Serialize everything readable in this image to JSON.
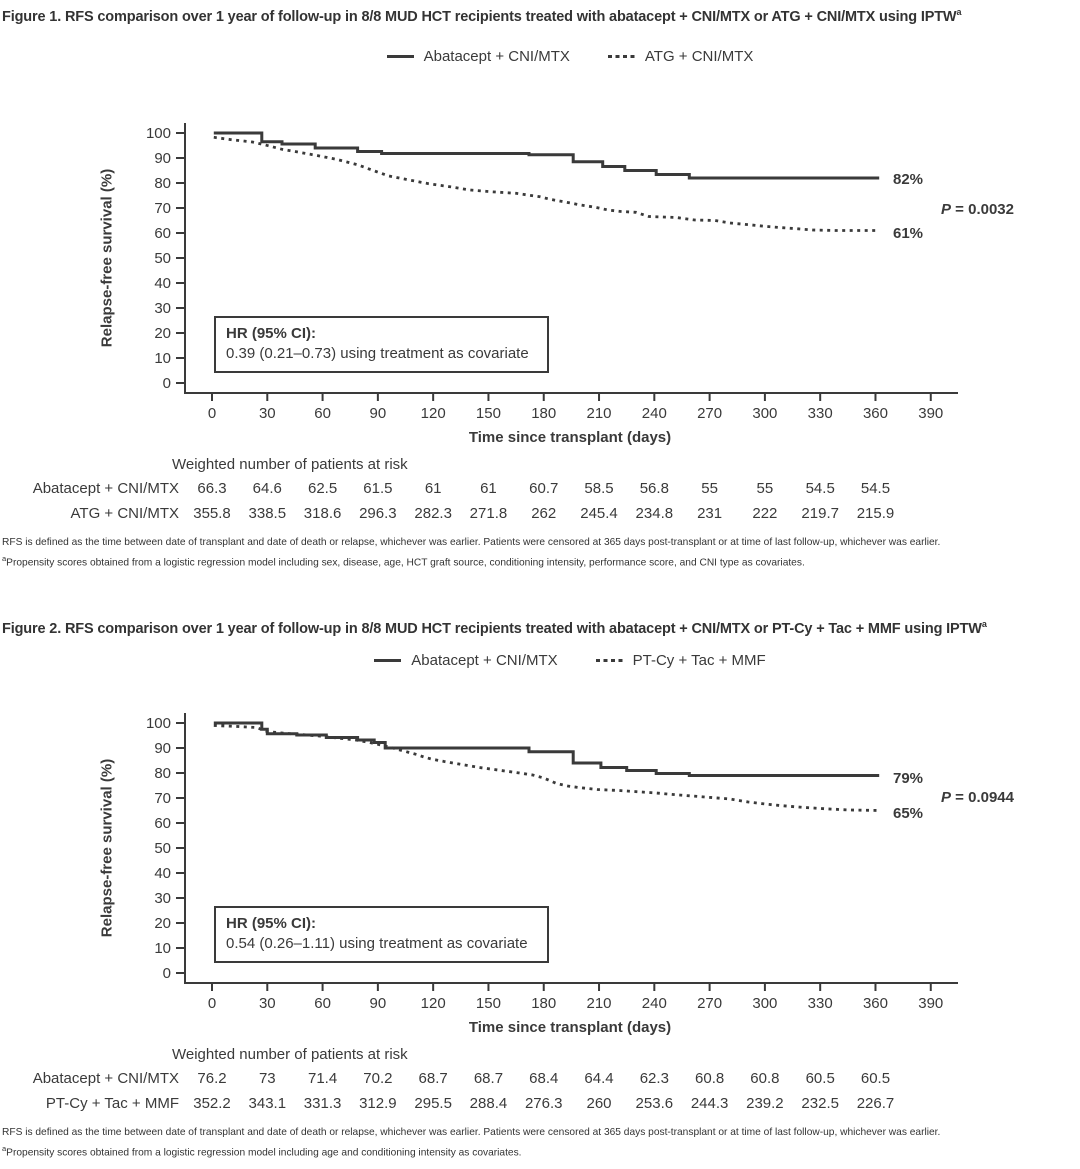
{
  "line_color": "#3a3a3a",
  "chart_data": [
    {
      "id": "figure1",
      "type": "line",
      "title": "Figure 1. RFS comparison over 1 year of follow-up in 8/8 MUD HCT recipients treated with abatacept + CNI/MTX or ATG + CNI/MTX using IPTW",
      "title_sup": "a",
      "xlabel": "Time since transplant (days)",
      "ylabel": "Relapse-free survival (%)",
      "xlim": [
        0,
        390
      ],
      "ylim": [
        0,
        100
      ],
      "xticks": [
        0,
        30,
        60,
        90,
        120,
        150,
        180,
        210,
        240,
        270,
        300,
        330,
        360,
        390
      ],
      "yticks": [
        0,
        10,
        20,
        30,
        40,
        50,
        60,
        70,
        80,
        90,
        100
      ],
      "grid": false,
      "legend_position": "top-center",
      "series": [
        {
          "name": "Abatacept + CNI/MTX",
          "style": "solid",
          "color": "#3a3a3a",
          "end_label": "82%",
          "points": [
            [
              1,
              100
            ],
            [
              27,
              100
            ],
            [
              27,
              96.5
            ],
            [
              38,
              96.5
            ],
            [
              38,
              95.6
            ],
            [
              56,
              95.6
            ],
            [
              56,
              94
            ],
            [
              79,
              94
            ],
            [
              79,
              92.6
            ],
            [
              92,
              92.6
            ],
            [
              92,
              91.8
            ],
            [
              172,
              91.8
            ],
            [
              172,
              91.3
            ],
            [
              196,
              91.3
            ],
            [
              196,
              88.5
            ],
            [
              212,
              88.5
            ],
            [
              212,
              86.6
            ],
            [
              224,
              86.6
            ],
            [
              224,
              85
            ],
            [
              241,
              85
            ],
            [
              241,
              83.4
            ],
            [
              259,
              83.4
            ],
            [
              259,
              82
            ],
            [
              362,
              82
            ]
          ]
        },
        {
          "name": "ATG + CNI/MTX",
          "style": "dotted",
          "color": "#3a3a3a",
          "end_label": "61%",
          "points": [
            [
              1,
              98.3
            ],
            [
              11,
              97.3
            ],
            [
              22,
              96.4
            ],
            [
              29,
              95.2
            ],
            [
              38,
              93.5
            ],
            [
              48,
              92.2
            ],
            [
              57,
              91
            ],
            [
              68,
              89.4
            ],
            [
              79,
              87.3
            ],
            [
              89,
              84.6
            ],
            [
              96,
              82.8
            ],
            [
              107,
              81.2
            ],
            [
              117,
              79.8
            ],
            [
              130,
              78.4
            ],
            [
              140,
              77.2
            ],
            [
              152,
              76.5
            ],
            [
              165,
              75.9
            ],
            [
              178,
              74.5
            ],
            [
              184,
              73.4
            ],
            [
              191,
              72.5
            ],
            [
              200,
              71.2
            ],
            [
              208,
              70.3
            ],
            [
              215,
              69.2
            ],
            [
              222,
              68.6
            ],
            [
              230,
              68.3
            ],
            [
              237,
              66.6
            ],
            [
              252,
              66.2
            ],
            [
              262,
              65.2
            ],
            [
              273,
              65
            ],
            [
              281,
              64
            ],
            [
              290,
              63.4
            ],
            [
              300,
              62.7
            ],
            [
              308,
              62.2
            ],
            [
              318,
              61.7
            ],
            [
              326,
              61.2
            ],
            [
              338,
              61
            ],
            [
              362,
              61
            ]
          ]
        }
      ],
      "p_value": {
        "label": "P",
        "rest": " = 0.0032"
      },
      "hr_box": [
        "HR (95% CI):",
        "0.39 (0.21–0.73) using treatment as covariate"
      ],
      "at_risk": {
        "header": "Weighted number of patients at risk",
        "days": [
          0,
          30,
          60,
          90,
          120,
          150,
          180,
          210,
          240,
          270,
          300,
          330,
          360
        ],
        "rows": [
          {
            "label": "Abatacept + CNI/MTX",
            "values": [
              "66.3",
              "64.6",
              "62.5",
              "61.5",
              "61",
              "61",
              "60.7",
              "58.5",
              "56.8",
              "55",
              "55",
              "54.5",
              "54.5"
            ]
          },
          {
            "label": "ATG + CNI/MTX",
            "values": [
              "355.8",
              "338.5",
              "318.6",
              "296.3",
              "282.3",
              "271.8",
              "262",
              "245.4",
              "234.8",
              "231",
              "222",
              "219.7",
              "215.9"
            ]
          }
        ]
      },
      "footnote1": "RFS is defined as the time between date of transplant and date of death or relapse, whichever was earlier. Patients were censored at 365 days post-transplant or at time of last follow-up, whichever was earlier.",
      "footnote2_sup": "a",
      "footnote2": "Propensity scores obtained from a logistic regression model including sex, disease, age, HCT graft source, conditioning intensity, performance score, and CNI type as covariates."
    },
    {
      "id": "figure2",
      "type": "line",
      "title": "Figure 2. RFS comparison over 1 year of follow-up in 8/8 MUD HCT recipients treated with abatacept + CNI/MTX or PT-Cy + Tac + MMF using IPTW",
      "title_sup": "a",
      "xlabel": "Time since transplant (days)",
      "ylabel": "Relapse-free survival (%)",
      "xlim": [
        0,
        390
      ],
      "ylim": [
        0,
        100
      ],
      "xticks": [
        0,
        30,
        60,
        90,
        120,
        150,
        180,
        210,
        240,
        270,
        300,
        330,
        360,
        390
      ],
      "yticks": [
        0,
        10,
        20,
        30,
        40,
        50,
        60,
        70,
        80,
        90,
        100
      ],
      "grid": false,
      "legend_position": "top-center",
      "series": [
        {
          "name": "Abatacept + CNI/MTX",
          "style": "solid",
          "color": "#3a3a3a",
          "end_label": "79%",
          "points": [
            [
              1,
              100
            ],
            [
              27,
              100
            ],
            [
              27,
              97.5
            ],
            [
              30,
              97.5
            ],
            [
              30,
              95.7
            ],
            [
              46,
              95.7
            ],
            [
              46,
              95.2
            ],
            [
              62,
              95.2
            ],
            [
              62,
              94.2
            ],
            [
              79,
              94.2
            ],
            [
              79,
              93.2
            ],
            [
              88,
              93.2
            ],
            [
              88,
              92.2
            ],
            [
              94,
              92.2
            ],
            [
              94,
              90
            ],
            [
              172,
              90
            ],
            [
              172,
              88.5
            ],
            [
              196,
              88.5
            ],
            [
              196,
              84
            ],
            [
              211,
              84
            ],
            [
              211,
              82.2
            ],
            [
              225,
              82.2
            ],
            [
              225,
              81
            ],
            [
              241,
              81
            ],
            [
              241,
              79.8
            ],
            [
              259,
              79.8
            ],
            [
              259,
              79
            ],
            [
              362,
              79
            ]
          ]
        },
        {
          "name": "PT-Cy + Tac + MMF",
          "style": "dotted",
          "color": "#3a3a3a",
          "end_label": "65%",
          "points": [
            [
              1,
              99
            ],
            [
              14,
              98.6
            ],
            [
              24,
              98.2
            ],
            [
              30,
              96.6
            ],
            [
              38,
              96
            ],
            [
              48,
              95.4
            ],
            [
              58,
              94.8
            ],
            [
              68,
              94
            ],
            [
              78,
              93.2
            ],
            [
              85,
              92.3
            ],
            [
              90,
              91.5
            ],
            [
              96,
              90.4
            ],
            [
              101,
              89.4
            ],
            [
              106,
              88.4
            ],
            [
              111,
              87.4
            ],
            [
              115,
              86.4
            ],
            [
              119,
              85.6
            ],
            [
              126,
              84.6
            ],
            [
              134,
              83.6
            ],
            [
              145,
              82.2
            ],
            [
              155,
              81.2
            ],
            [
              165,
              80.2
            ],
            [
              174,
              79.2
            ],
            [
              180,
              78
            ],
            [
              187,
              75.8
            ],
            [
              193,
              74.8
            ],
            [
              199,
              74.2
            ],
            [
              209,
              73.4
            ],
            [
              221,
              73
            ],
            [
              241,
              72
            ],
            [
              252,
              71.3
            ],
            [
              264,
              70.6
            ],
            [
              281,
              69.6
            ],
            [
              291,
              68.4
            ],
            [
              300,
              67.6
            ],
            [
              308,
              67
            ],
            [
              320,
              66.3
            ],
            [
              333,
              65.7
            ],
            [
              346,
              65.2
            ],
            [
              362,
              65
            ]
          ]
        }
      ],
      "p_value": {
        "label": "P",
        "rest": " = 0.0944"
      },
      "hr_box": [
        "HR (95% CI):",
        "0.54 (0.26–1.11) using treatment as covariate"
      ],
      "at_risk": {
        "header": "Weighted number of patients at risk",
        "days": [
          0,
          30,
          60,
          90,
          120,
          150,
          180,
          210,
          240,
          270,
          300,
          330,
          360
        ],
        "rows": [
          {
            "label": "Abatacept + CNI/MTX",
            "values": [
              "76.2",
              "73",
              "71.4",
              "70.2",
              "68.7",
              "68.7",
              "68.4",
              "64.4",
              "62.3",
              "60.8",
              "60.8",
              "60.5",
              "60.5"
            ]
          },
          {
            "label": "PT-Cy + Tac + MMF",
            "values": [
              "352.2",
              "343.1",
              "331.3",
              "312.9",
              "295.5",
              "288.4",
              "276.3",
              "260",
              "253.6",
              "244.3",
              "239.2",
              "232.5",
              "226.7"
            ]
          }
        ]
      },
      "footnote1": "RFS is defined as the time between date of transplant and date of death or relapse, whichever was earlier. Patients were censored at 365 days post-transplant or at time of last follow-up, whichever was earlier.",
      "footnote2_sup": "a",
      "footnote2": "Propensity scores obtained from a logistic regression model including age and conditioning intensity as covariates."
    }
  ]
}
